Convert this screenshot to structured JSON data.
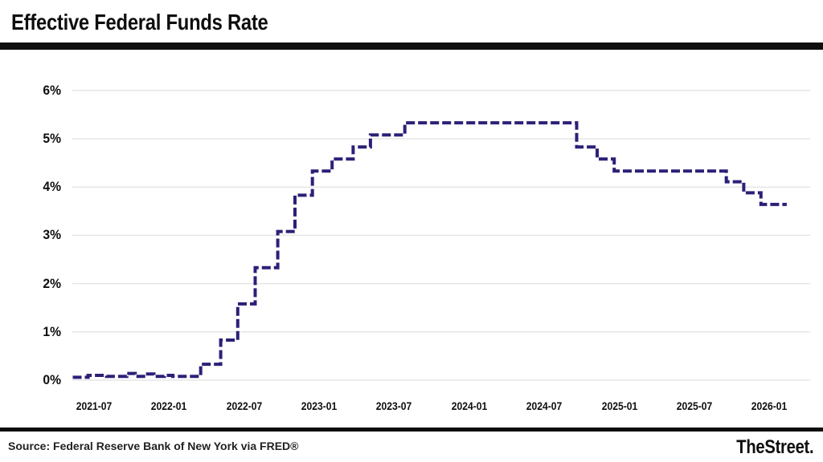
{
  "header": {
    "title": "Effective Federal Funds Rate"
  },
  "footer": {
    "source": "Source: Federal Reserve Bank of New York via FRED®",
    "brand": "TheStreet."
  },
  "colors": {
    "line": "#2b2078",
    "grid": "#e5e5e5",
    "bars": "#0e0e0e",
    "text": "#0e0e0e"
  },
  "chart_data": {
    "type": "line",
    "step": true,
    "dashed": true,
    "title": "Effective Federal Funds Rate",
    "xlabel": "",
    "ylabel": "",
    "ylim": [
      0,
      6
    ],
    "grid": "horizontal-only",
    "legend": "none",
    "yticks": [
      {
        "label": "6%",
        "value": 6
      },
      {
        "label": "5%",
        "value": 5
      },
      {
        "label": "4%",
        "value": 4
      },
      {
        "label": "3%",
        "value": 3
      },
      {
        "label": "2%",
        "value": 2
      },
      {
        "label": "1%",
        "value": 1
      },
      {
        "label": "0%",
        "value": 0
      }
    ],
    "xticks": [
      {
        "label": "2021-07",
        "date": "2021-07-01"
      },
      {
        "label": "2022-01",
        "date": "2022-01-01"
      },
      {
        "label": "2022-07",
        "date": "2022-07-01"
      },
      {
        "label": "2023-01",
        "date": "2023-01-01"
      },
      {
        "label": "2023-07",
        "date": "2023-07-01"
      },
      {
        "label": "2024-01",
        "date": "2024-01-01"
      },
      {
        "label": "2024-07",
        "date": "2024-07-01"
      },
      {
        "label": "2025-01",
        "date": "2025-01-01"
      },
      {
        "label": "2025-07",
        "date": "2025-07-01"
      },
      {
        "label": "2026-01",
        "date": "2026-01-01"
      }
    ],
    "line_color": "#2b2078",
    "grid_color": "#e5e5e5",
    "series": [
      {
        "name": "Effective Federal Funds Rate (%)",
        "points": [
          {
            "d": "2021-05-10",
            "v": 0.06
          },
          {
            "d": "2021-06-16",
            "v": 0.06
          },
          {
            "d": "2021-06-17",
            "v": 0.1
          },
          {
            "d": "2021-08-01",
            "v": 0.08
          },
          {
            "d": "2021-09-20",
            "v": 0.14
          },
          {
            "d": "2021-10-10",
            "v": 0.08
          },
          {
            "d": "2021-11-05",
            "v": 0.13
          },
          {
            "d": "2021-11-25",
            "v": 0.08
          },
          {
            "d": "2021-12-20",
            "v": 0.1
          },
          {
            "d": "2022-01-10",
            "v": 0.08
          },
          {
            "d": "2022-03-17",
            "v": 0.33
          },
          {
            "d": "2022-05-05",
            "v": 0.83
          },
          {
            "d": "2022-06-16",
            "v": 1.58
          },
          {
            "d": "2022-07-28",
            "v": 2.33
          },
          {
            "d": "2022-09-22",
            "v": 3.08
          },
          {
            "d": "2022-11-03",
            "v": 3.83
          },
          {
            "d": "2022-12-15",
            "v": 4.33
          },
          {
            "d": "2023-02-02",
            "v": 4.58
          },
          {
            "d": "2023-03-23",
            "v": 4.83
          },
          {
            "d": "2023-05-04",
            "v": 5.08
          },
          {
            "d": "2023-07-27",
            "v": 5.33
          },
          {
            "d": "2024-09-19",
            "v": 4.83
          },
          {
            "d": "2024-11-08",
            "v": 4.58
          },
          {
            "d": "2024-12-19",
            "v": 4.33
          },
          {
            "d": "2025-09-18",
            "v": 4.11
          },
          {
            "d": "2025-10-30",
            "v": 3.88
          },
          {
            "d": "2025-12-11",
            "v": 3.64
          },
          {
            "d": "2026-02-13",
            "v": 3.64
          }
        ]
      }
    ]
  }
}
